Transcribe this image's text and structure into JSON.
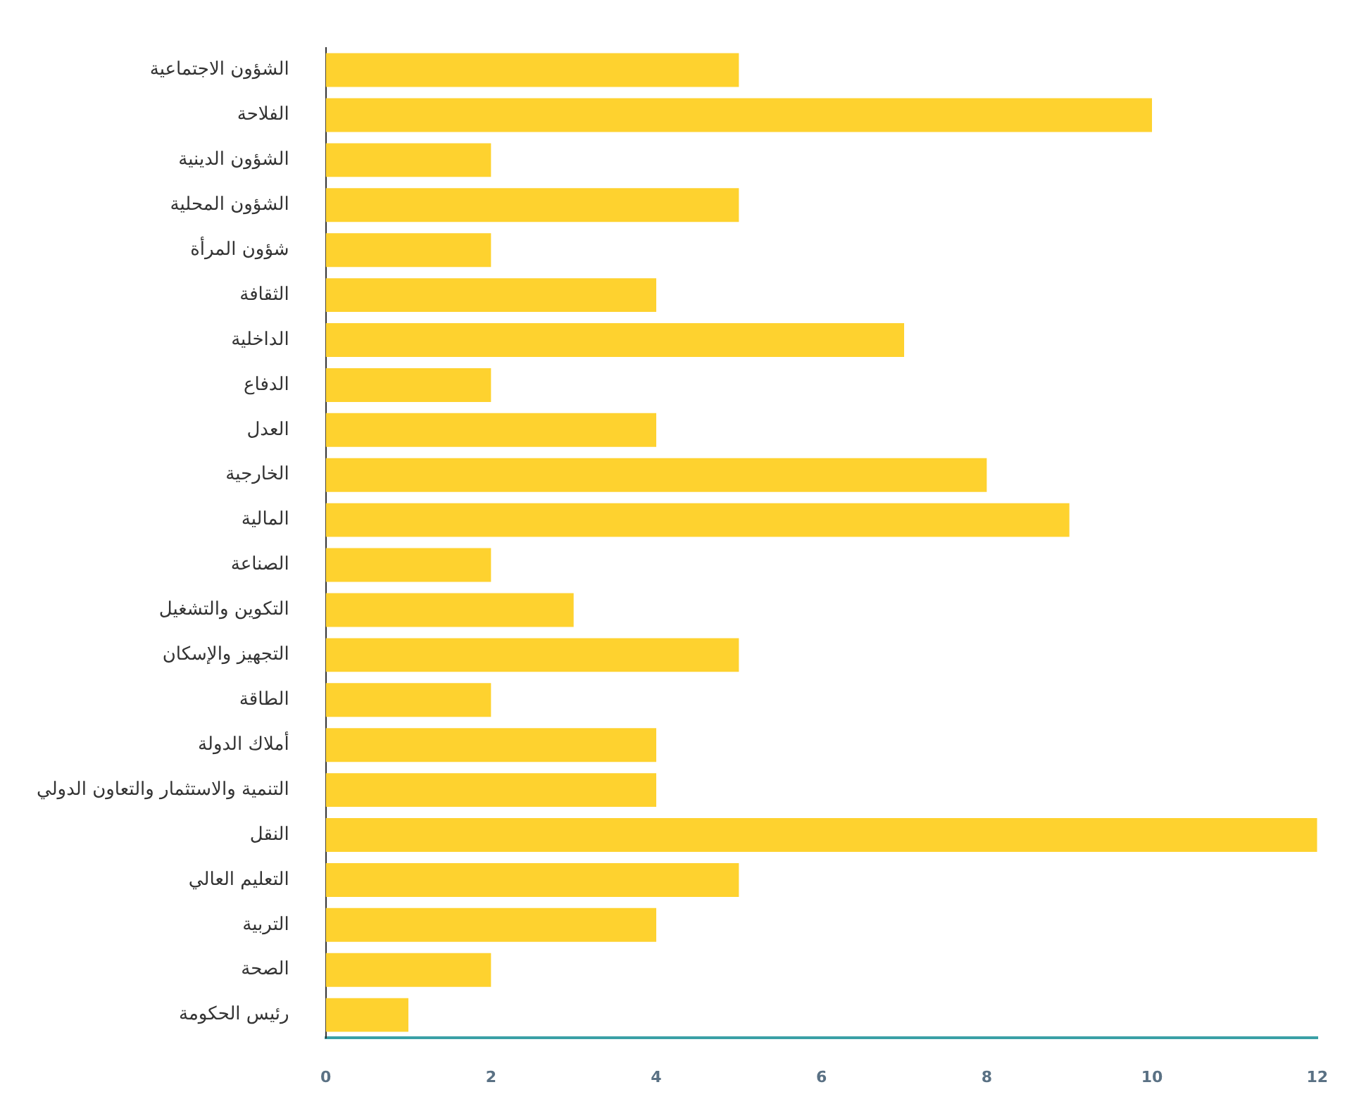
{
  "chart_data": {
    "type": "bar",
    "orientation": "horizontal",
    "categories": [
      "الشؤون الاجتماعية",
      "الفلاحة",
      "الشؤون الدينية",
      "الشؤون المحلية",
      "شؤون المرأة",
      "الثقافة",
      "الداخلية",
      "الدفاع",
      "العدل",
      "الخارجية",
      "المالية",
      "الصناعة",
      "التكوين والتشغيل",
      "التجهيز والإسكان",
      "الطاقة",
      "أملاك الدولة",
      "التنمية والاستثمار والتعاون الدولي",
      "النقل",
      "التعليم العالي",
      "التربية",
      "الصحة",
      "رئيس الحكومة"
    ],
    "values": [
      5,
      10,
      2,
      5,
      2,
      4,
      7,
      2,
      4,
      8,
      9,
      2,
      3,
      5,
      2,
      4,
      4,
      12,
      5,
      4,
      2,
      1
    ],
    "color": "#fed22f",
    "xlim": [
      0,
      12
    ],
    "xticks": [
      0,
      2,
      4,
      6,
      8,
      10,
      12
    ],
    "grid": false,
    "legend": false
  }
}
